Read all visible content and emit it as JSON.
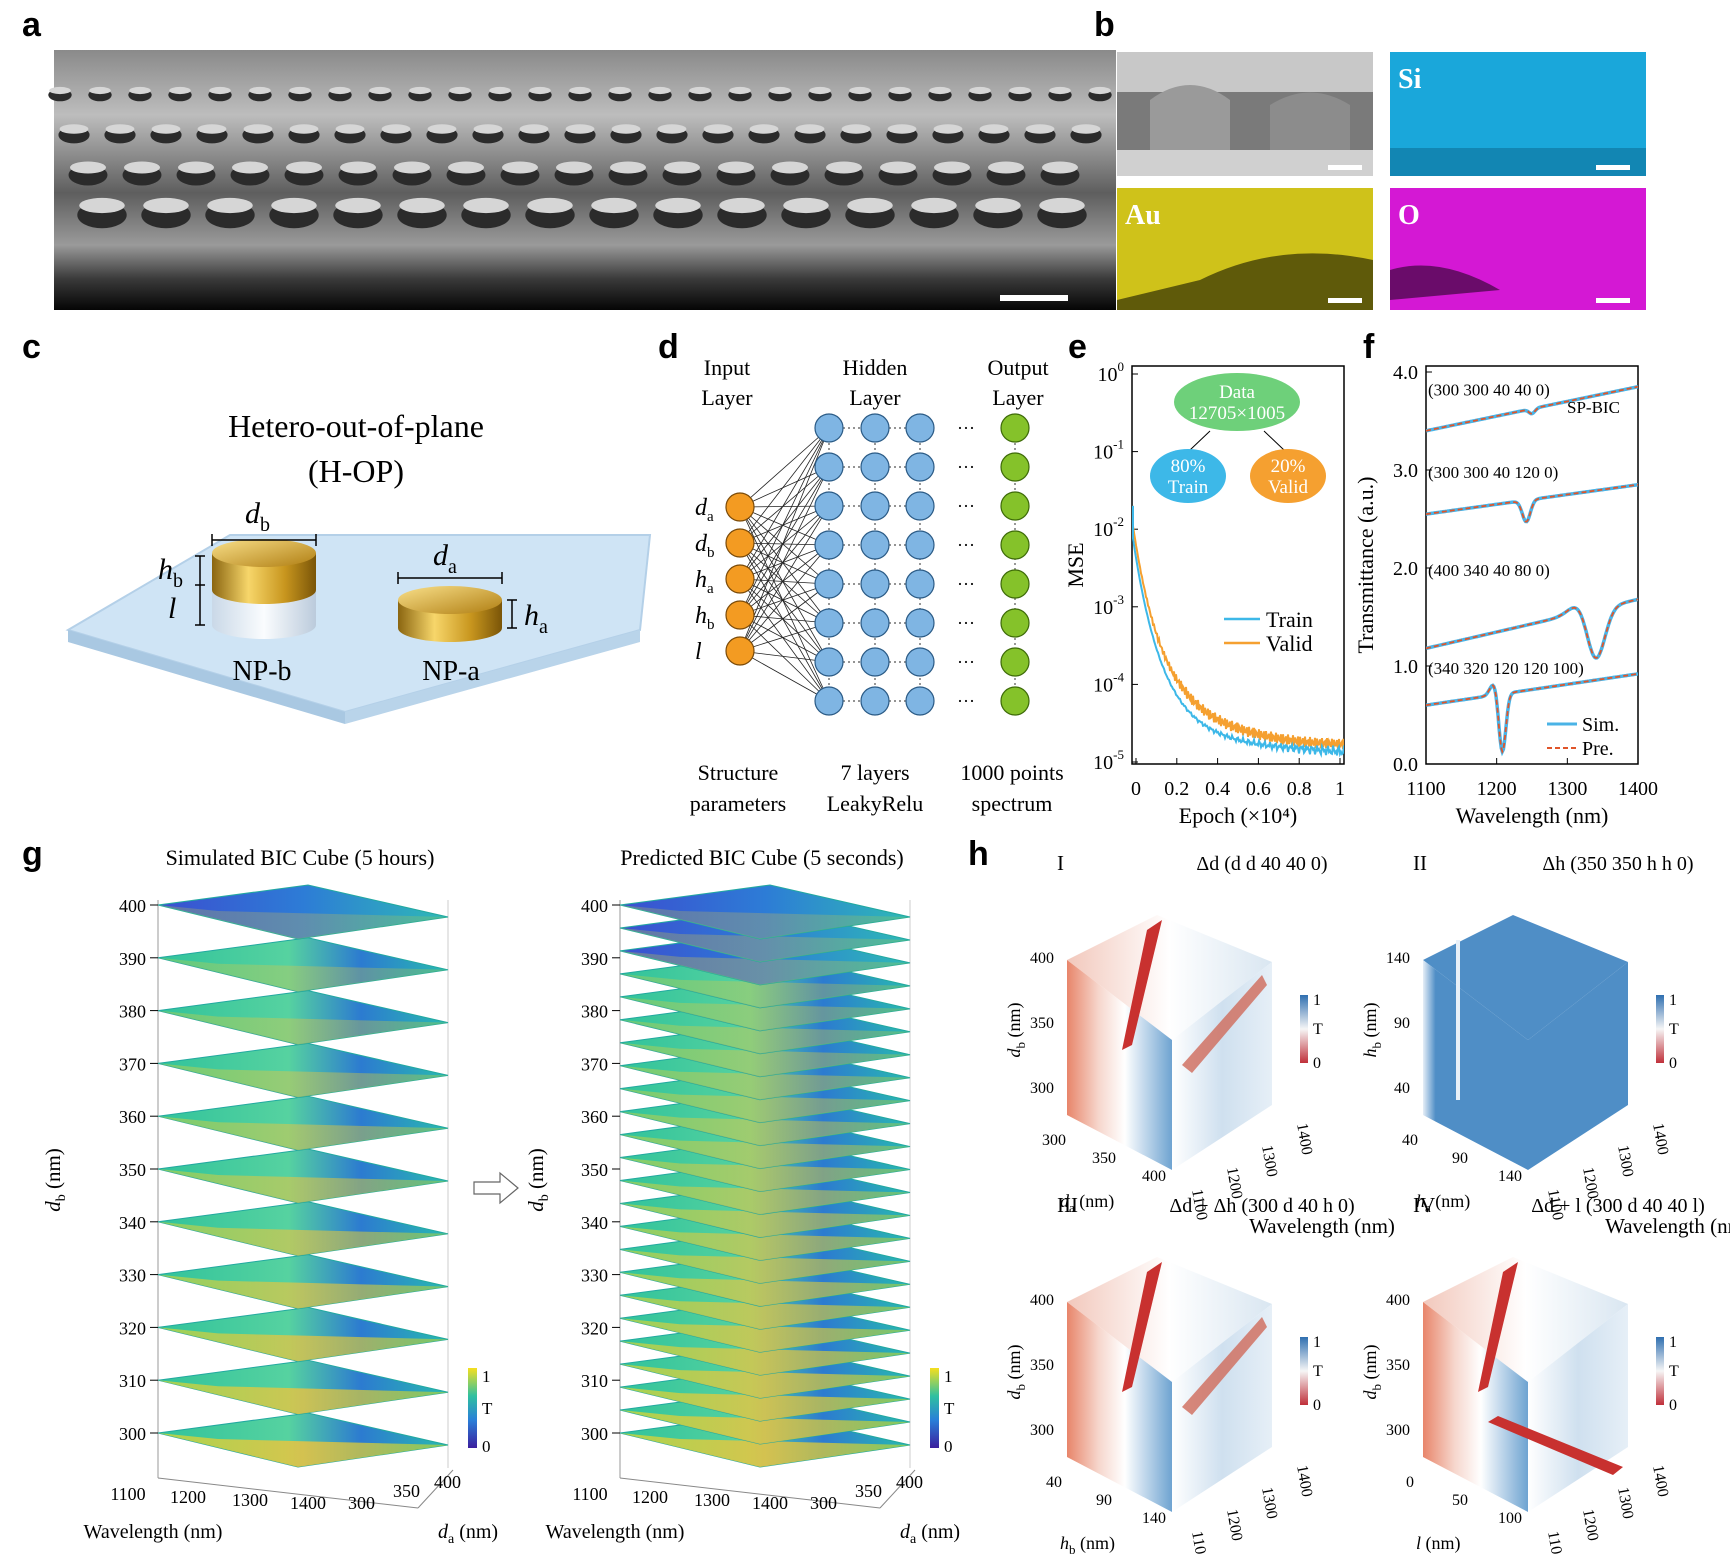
{
  "panels": {
    "a": "a",
    "b": "b",
    "c": "c",
    "d": "d",
    "e": "e",
    "f": "f",
    "g": "g",
    "h": "h"
  },
  "b": {
    "si": "Si",
    "au": "Au",
    "o": "O"
  },
  "c": {
    "title1": "Hetero-out-of-plane",
    "title2": "(H-OP)",
    "db": "d",
    "db_sub": "b",
    "da": "d",
    "da_sub": "a",
    "hb": "h",
    "hb_sub": "b",
    "l": "l",
    "ha": "h",
    "ha_sub": "a",
    "npb": "NP-b",
    "npa": "NP-a"
  },
  "d": {
    "input1": "Input",
    "input2": "Layer",
    "hidden1": "Hidden",
    "hidden2": "Layer",
    "output1": "Output",
    "output2": "Layer",
    "inputs": [
      {
        "v": "d",
        "s": "a"
      },
      {
        "v": "d",
        "s": "b"
      },
      {
        "v": "h",
        "s": "a"
      },
      {
        "v": "h",
        "s": "b"
      },
      {
        "v": "l",
        "s": ""
      }
    ],
    "ellipsis": "···",
    "foot1a": "Structure",
    "foot1b": "parameters",
    "foot2a": "7 layers",
    "foot2b": "LeakyRelu",
    "foot3a": "1000 points",
    "foot3b": "spectrum"
  },
  "e": {
    "ylabel": "MSE",
    "xlabel": "Epoch (×10⁴)",
    "yticks": [
      {
        "b": "10",
        "e": "0"
      },
      {
        "b": "10",
        "e": "-1"
      },
      {
        "b": "10",
        "e": "-2"
      },
      {
        "b": "10",
        "e": "-3"
      },
      {
        "b": "10",
        "e": "-4"
      },
      {
        "b": "10",
        "e": "-5"
      }
    ],
    "xticks": [
      "0",
      "0.2",
      "0.4",
      "0.6",
      "0.8",
      "1"
    ],
    "data1": "Data",
    "data2": "12705×1005",
    "train_pct": "80%",
    "train_lbl": "Train",
    "valid_pct": "20%",
    "valid_lbl": "Valid",
    "legend_train": "Train",
    "legend_valid": "Valid",
    "colors": {
      "train": "#3db8e8",
      "valid": "#f5a030",
      "data": "#6ed07a"
    }
  },
  "f": {
    "ylabel": "Transmittance (a.u.)",
    "xlabel": "Wavelength (nm)",
    "yticks": [
      "4.0",
      "3.0",
      "2.0",
      "1.0",
      "0.0"
    ],
    "xticks": [
      "1100",
      "1200",
      "1300",
      "1400"
    ],
    "labels": [
      "(300 300 40 40 0)",
      "(300 300 40 120 0)",
      "(400 340 40 80 0)",
      "(340 320 120 120 100)"
    ],
    "spbic": "SP-BIC",
    "legend_sim": "Sim.",
    "legend_pre": "Pre.",
    "colors": {
      "sim": "#4ab3e6",
      "pre": "#e0552a"
    }
  },
  "g": {
    "title_left": "Simulated BIC Cube (5 hours)",
    "title_right": "Predicted BIC Cube (5 seconds)",
    "yticks": [
      "400",
      "390",
      "380",
      "370",
      "360",
      "350",
      "340",
      "330",
      "320",
      "310",
      "300"
    ],
    "ylabel": "d",
    "ylabel_sub": "b",
    "ylabel_unit": " (nm)",
    "xticks": [
      "1100",
      "1200",
      "1300",
      "1400"
    ],
    "xlabel": "Wavelength (nm)",
    "zticks": [
      "300",
      "350",
      "400"
    ],
    "zlabel": "d",
    "zlabel_sub": "a",
    "zlabel_unit": " (nm)",
    "cbar_top": "1",
    "cbar_mid": "T",
    "cbar_bot": "0"
  },
  "h": {
    "I": {
      "num": "I",
      "title": "Δd (d  d  40 40 0)"
    },
    "II": {
      "num": "II",
      "title": "Δh (350 350 h  h  0)"
    },
    "III": {
      "num": "III",
      "title": "Δd + Δh (300 d  40 h  0)"
    },
    "IV": {
      "num": "IV",
      "title": "Δd + l (300 d  40 40 l)"
    },
    "db_ticks": [
      "400",
      "350",
      "300"
    ],
    "hb_ticks": [
      "140",
      "90",
      "40"
    ],
    "da_ticks": [
      "300",
      "350",
      "400"
    ],
    "ha_ticks": [
      "40",
      "90",
      "140"
    ],
    "l_ticks": [
      "0",
      "50",
      "100"
    ],
    "wl_ticks": [
      "1100",
      "1200",
      "1300",
      "1400"
    ],
    "wl_label": "Wavelength (nm)",
    "cbar_top": "1",
    "cbar_mid": "T",
    "cbar_bot": "0"
  }
}
